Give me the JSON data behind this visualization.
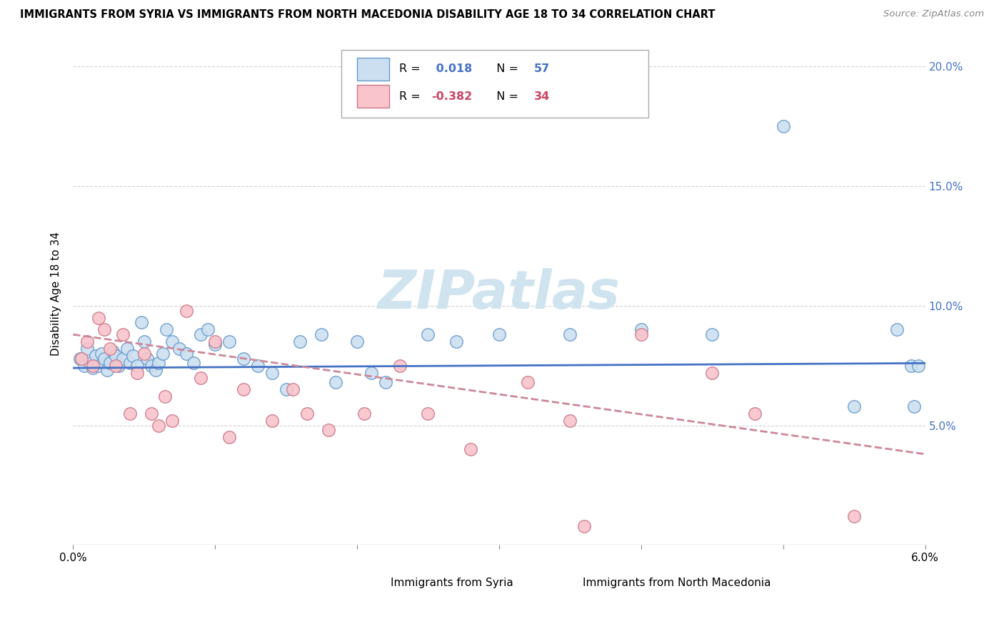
{
  "title": "IMMIGRANTS FROM SYRIA VS IMMIGRANTS FROM NORTH MACEDONIA DISABILITY AGE 18 TO 34 CORRELATION CHART",
  "source": "Source: ZipAtlas.com",
  "ylabel": "Disability Age 18 to 34",
  "xlim": [
    0.0,
    6.0
  ],
  "ylim": [
    0.0,
    21.0
  ],
  "legend_syria_r": "0.018",
  "legend_syria_n": "57",
  "legend_macedonia_r": "-0.382",
  "legend_macedonia_n": "34",
  "color_syria_fill": "#ccdff0",
  "color_syria_edge": "#6699cc",
  "color_macedonia_fill": "#f9c4cc",
  "color_macedonia_edge": "#cc7788",
  "color_syria_line": "#4472c4",
  "color_macedonia_line": "#cc8899",
  "watermark_color": "#d0e4f0",
  "syria_x": [
    0.05,
    0.08,
    0.1,
    0.12,
    0.14,
    0.16,
    0.18,
    0.2,
    0.22,
    0.24,
    0.26,
    0.28,
    0.3,
    0.32,
    0.35,
    0.38,
    0.4,
    0.42,
    0.45,
    0.48,
    0.5,
    0.52,
    0.55,
    0.58,
    0.6,
    0.63,
    0.66,
    0.7,
    0.75,
    0.8,
    0.85,
    0.9,
    0.95,
    1.0,
    1.1,
    1.2,
    1.3,
    1.4,
    1.5,
    1.6,
    1.75,
    1.85,
    2.0,
    2.1,
    2.2,
    2.5,
    2.7,
    3.0,
    3.5,
    4.0,
    4.5,
    5.0,
    5.5,
    5.8,
    5.9,
    5.92,
    5.95
  ],
  "syria_y": [
    7.8,
    7.5,
    8.2,
    7.6,
    7.4,
    7.9,
    7.5,
    8.0,
    7.8,
    7.3,
    7.6,
    8.1,
    7.9,
    7.5,
    7.8,
    8.2,
    7.6,
    7.9,
    7.5,
    9.3,
    8.5,
    7.8,
    7.5,
    7.3,
    7.6,
    8.0,
    9.0,
    8.5,
    8.2,
    8.0,
    7.6,
    8.8,
    9.0,
    8.4,
    8.5,
    7.8,
    7.5,
    7.2,
    6.5,
    8.5,
    8.8,
    6.8,
    8.5,
    7.2,
    6.8,
    8.8,
    8.5,
    8.8,
    8.8,
    9.0,
    8.8,
    17.5,
    5.8,
    9.0,
    7.5,
    5.8,
    7.5
  ],
  "macedonia_x": [
    0.06,
    0.1,
    0.14,
    0.18,
    0.22,
    0.26,
    0.3,
    0.35,
    0.4,
    0.45,
    0.5,
    0.55,
    0.6,
    0.65,
    0.7,
    0.8,
    0.9,
    1.0,
    1.1,
    1.2,
    1.4,
    1.55,
    1.65,
    1.8,
    2.05,
    2.3,
    2.5,
    2.8,
    3.2,
    3.5,
    4.0,
    4.5,
    4.8,
    5.5
  ],
  "macedonia_y": [
    7.8,
    8.5,
    7.5,
    9.5,
    9.0,
    8.2,
    7.5,
    8.8,
    5.5,
    7.2,
    8.0,
    5.5,
    5.0,
    6.2,
    5.2,
    9.8,
    7.0,
    8.5,
    4.5,
    6.5,
    5.2,
    6.5,
    5.5,
    4.8,
    5.5,
    7.5,
    5.5,
    4.0,
    6.8,
    5.2,
    8.8,
    7.2,
    5.5,
    1.2
  ],
  "macedonia_lone_x": 3.6,
  "macedonia_lone_y": 0.8,
  "syria_trend_x": [
    0.0,
    6.0
  ],
  "syria_trend_y": [
    7.4,
    7.6
  ],
  "macedonia_trend_x": [
    0.0,
    6.0
  ],
  "macedonia_trend_y": [
    8.8,
    3.8
  ],
  "background_color": "#ffffff",
  "grid_color": "#cccccc",
  "right_ytick_color": "#4472c4",
  "y_ticks_pct": [
    5.0,
    10.0,
    15.0,
    20.0
  ],
  "y_ticks_pct_labels": [
    "5.0%",
    "10.0%",
    "15.0%",
    "20.0%"
  ]
}
